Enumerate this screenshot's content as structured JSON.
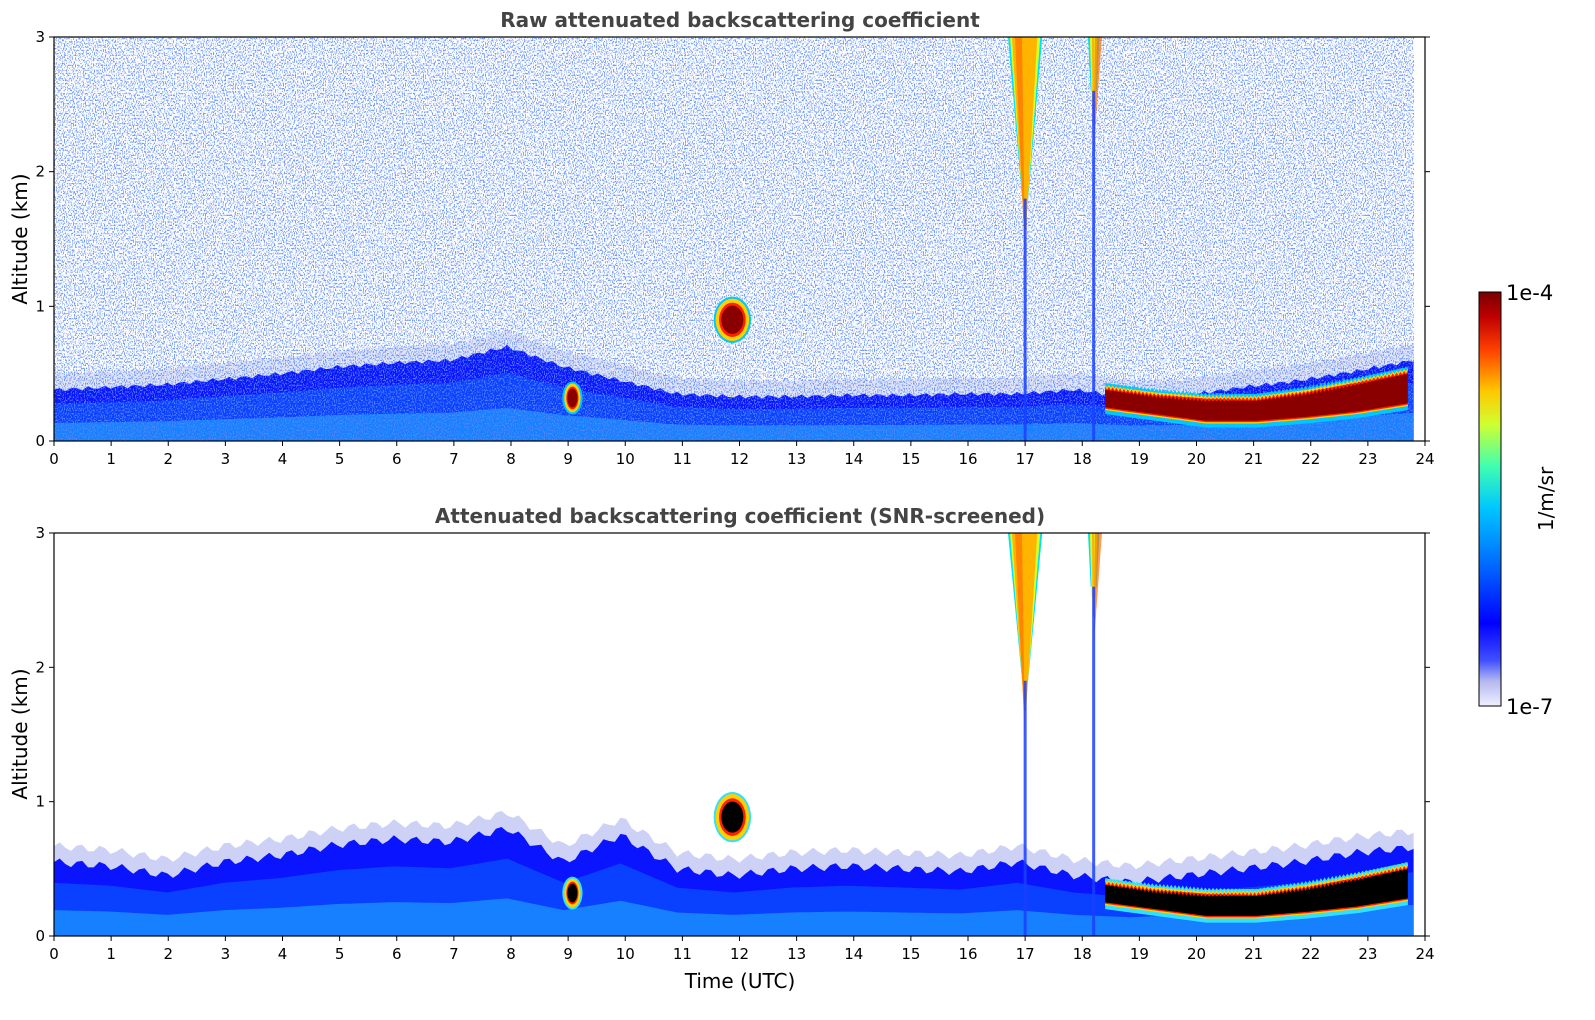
{
  "chart_data": [
    {
      "type": "heatmap",
      "title": "Raw attenuated backscattering coefficient",
      "xlabel": "",
      "ylabel": "Altitude (km)",
      "xlim": [
        0,
        24
      ],
      "ylim": [
        0,
        3
      ],
      "xticks": [
        "0",
        "1",
        "2",
        "3",
        "4",
        "5",
        "6",
        "7",
        "8",
        "9",
        "10",
        "11",
        "12",
        "13",
        "14",
        "15",
        "16",
        "17",
        "18",
        "19",
        "20",
        "21",
        "22",
        "23",
        "24"
      ],
      "yticks": [
        "0",
        "1",
        "2",
        "3"
      ],
      "noise": "high",
      "features": [
        {
          "label": "boundary layer",
          "x": [
            0,
            23.8
          ],
          "top_km": [
            0.38,
            0.4,
            0.42,
            0.46,
            0.5,
            0.55,
            0.58,
            0.6,
            0.7,
            0.55,
            0.45,
            0.35,
            0.33,
            0.33,
            0.34,
            0.34,
            0.35,
            0.35,
            0.38,
            0.33,
            0.34,
            0.4,
            0.45,
            0.52,
            0.6
          ],
          "intensity": "moderate"
        },
        {
          "label": "cloud",
          "x": [
            8.95,
            9.2
          ],
          "y": [
            0.22,
            0.42
          ],
          "intensity": "very high"
        },
        {
          "label": "cloud",
          "x": [
            11.6,
            12.15
          ],
          "y": [
            0.75,
            1.05
          ],
          "intensity": "very high"
        },
        {
          "label": "precipitation streak",
          "x": [
            16.7,
            17.3
          ],
          "y": [
            1.8,
            3.0
          ],
          "intensity": "high"
        },
        {
          "label": "precipitation streak",
          "x": [
            18.1,
            18.3
          ],
          "y": [
            2.6,
            3.0
          ],
          "intensity": "high"
        },
        {
          "label": "cloud layer",
          "x": [
            18.4,
            23.7
          ],
          "base_km": [
            0.25,
            0.2,
            0.15,
            0.15,
            0.18,
            0.22,
            0.28
          ],
          "top_km": [
            0.38,
            0.33,
            0.3,
            0.3,
            0.35,
            0.42,
            0.5
          ],
          "intensity": "very high"
        }
      ]
    },
    {
      "type": "heatmap",
      "title": "Attenuated backscattering coefficient (SNR-screened)",
      "xlabel": "Time (UTC)",
      "ylabel": "Altitude (km)",
      "xlim": [
        0,
        24
      ],
      "ylim": [
        0,
        3
      ],
      "xticks": [
        "0",
        "1",
        "2",
        "3",
        "4",
        "5",
        "6",
        "7",
        "8",
        "9",
        "10",
        "11",
        "12",
        "13",
        "14",
        "15",
        "16",
        "17",
        "18",
        "19",
        "20",
        "21",
        "22",
        "23",
        "24"
      ],
      "yticks": [
        "0",
        "1",
        "2",
        "3"
      ],
      "noise": "screened",
      "features": [
        {
          "label": "boundary layer",
          "x": [
            0,
            23.8
          ],
          "top_km": [
            0.55,
            0.52,
            0.45,
            0.55,
            0.6,
            0.68,
            0.72,
            0.7,
            0.8,
            0.55,
            0.75,
            0.5,
            0.45,
            0.5,
            0.52,
            0.5,
            0.48,
            0.55,
            0.45,
            0.4,
            0.45,
            0.5,
            0.55,
            0.62,
            0.66
          ],
          "intensity": "moderate"
        },
        {
          "label": "cloud",
          "x": [
            8.95,
            9.2
          ],
          "y": [
            0.22,
            0.42
          ],
          "intensity": "saturated"
        },
        {
          "label": "cloud",
          "x": [
            11.6,
            12.15
          ],
          "y": [
            0.72,
            1.05
          ],
          "intensity": "saturated"
        },
        {
          "label": "precipitation streak",
          "x": [
            16.7,
            17.3
          ],
          "y": [
            1.9,
            3.0
          ],
          "intensity": "high"
        },
        {
          "label": "precipitation streak",
          "x": [
            18.1,
            18.3
          ],
          "y": [
            2.6,
            3.0
          ],
          "intensity": "high"
        },
        {
          "label": "cloud layer",
          "x": [
            18.4,
            23.7
          ],
          "base_km": [
            0.25,
            0.2,
            0.15,
            0.15,
            0.18,
            0.22,
            0.28
          ],
          "top_km": [
            0.38,
            0.33,
            0.3,
            0.3,
            0.35,
            0.42,
            0.5
          ],
          "intensity": "saturated"
        }
      ]
    }
  ],
  "colorbar": {
    "label": "1/m/sr",
    "min_label": "1e-7",
    "max_label": "1e-4",
    "colors": [
      "#ffffff",
      "#d0d4f2",
      "#9ea6ee",
      "#2f3cff",
      "#0004ff",
      "#0060ff",
      "#00b0ff",
      "#10e0d8",
      "#60ff90",
      "#c8ff30",
      "#ffd800",
      "#ff8a00",
      "#ff2400",
      "#c80000",
      "#7a0000"
    ]
  }
}
